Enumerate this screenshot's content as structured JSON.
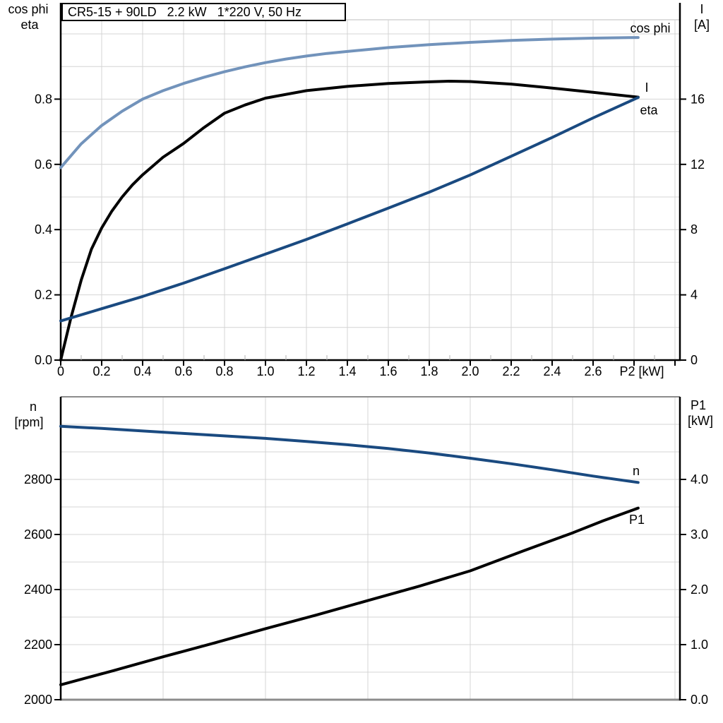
{
  "title": "CR5-15 + 90LD   2.2 kW   1*220 V, 50 Hz",
  "colors": {
    "light_blue": "#7293BB",
    "dark_blue": "#1A4A80",
    "black": "#000000",
    "grid": "#D4D4D4",
    "frame_gray": "#8C8C8C",
    "minor_tick": "#B0B0B0"
  },
  "chart_data": [
    {
      "type": "line",
      "panel": "top",
      "title": "CR5-15 + 90LD 2.2 kW 1*220 V, 50 Hz",
      "x_axis": {
        "label": "P2 [kW]",
        "range": [
          0,
          3.02
        ],
        "grid_step": 0.2,
        "tick_step": 0.2,
        "tick_labels": [
          "0",
          "0.2",
          "0.4",
          "0.6",
          "0.8",
          "1.0",
          "1.2",
          "1.4",
          "1.6",
          "1.8",
          "2.0",
          "2.2",
          "2.4",
          "2.6"
        ]
      },
      "left_axis": {
        "label_lines": [
          "cos phi",
          "eta"
        ],
        "range": [
          0,
          1.04
        ],
        "grid_step": 0.1,
        "ticks": [
          "0.0",
          "0.2",
          "0.4",
          "0.6",
          "0.8"
        ]
      },
      "right_axis": {
        "label_lines": [
          "I",
          "[A]"
        ],
        "range": [
          0,
          20.9
        ],
        "ticks": [
          "0",
          "4",
          "8",
          "12",
          "16"
        ]
      },
      "series": [
        {
          "name": "cos phi",
          "axis": "left",
          "color": "light_blue",
          "points": [
            [
              0,
              0.59
            ],
            [
              0.1,
              0.663
            ],
            [
              0.2,
              0.719
            ],
            [
              0.3,
              0.763
            ],
            [
              0.4,
              0.8
            ],
            [
              0.5,
              0.826
            ],
            [
              0.6,
              0.848
            ],
            [
              0.7,
              0.867
            ],
            [
              0.8,
              0.884
            ],
            [
              0.9,
              0.899
            ],
            [
              1.0,
              0.912
            ],
            [
              1.1,
              0.923
            ],
            [
              1.2,
              0.932
            ],
            [
              1.3,
              0.94
            ],
            [
              1.4,
              0.946
            ],
            [
              1.6,
              0.958
            ],
            [
              1.8,
              0.967
            ],
            [
              2.0,
              0.974
            ],
            [
              2.2,
              0.98
            ],
            [
              2.4,
              0.984
            ],
            [
              2.6,
              0.987
            ],
            [
              2.82,
              0.989
            ]
          ]
        },
        {
          "name": "eta",
          "axis": "left",
          "color": "black",
          "points": [
            [
              0,
              0
            ],
            [
              0.05,
              0.13
            ],
            [
              0.1,
              0.245
            ],
            [
              0.15,
              0.34
            ],
            [
              0.2,
              0.405
            ],
            [
              0.25,
              0.457
            ],
            [
              0.3,
              0.5
            ],
            [
              0.35,
              0.537
            ],
            [
              0.4,
              0.568
            ],
            [
              0.5,
              0.622
            ],
            [
              0.6,
              0.664
            ],
            [
              0.7,
              0.713
            ],
            [
              0.8,
              0.757
            ],
            [
              0.9,
              0.782
            ],
            [
              1.0,
              0.803
            ],
            [
              1.2,
              0.826
            ],
            [
              1.4,
              0.839
            ],
            [
              1.6,
              0.848
            ],
            [
              1.8,
              0.853
            ],
            [
              1.9,
              0.855
            ],
            [
              2.0,
              0.854
            ],
            [
              2.2,
              0.846
            ],
            [
              2.4,
              0.834
            ],
            [
              2.6,
              0.821
            ],
            [
              2.82,
              0.806
            ]
          ]
        },
        {
          "name": "I",
          "axis": "right",
          "color": "dark_blue",
          "points": [
            [
              0,
              2.4
            ],
            [
              0.2,
              3.15
            ],
            [
              0.4,
              3.9
            ],
            [
              0.6,
              4.72
            ],
            [
              0.8,
              5.6
            ],
            [
              1.0,
              6.5
            ],
            [
              1.2,
              7.4
            ],
            [
              1.4,
              8.35
            ],
            [
              1.6,
              9.32
            ],
            [
              1.8,
              10.3
            ],
            [
              2.0,
              11.35
            ],
            [
              2.2,
              12.5
            ],
            [
              2.4,
              13.65
            ],
            [
              2.6,
              14.85
            ],
            [
              2.82,
              16.1
            ]
          ]
        }
      ]
    },
    {
      "type": "line",
      "panel": "bottom",
      "x_axis": {
        "label": "",
        "range": [
          0,
          3.02
        ],
        "grid_step": 0.5,
        "tick_labels": []
      },
      "left_axis": {
        "label_lines": [
          "n",
          "[rpm]"
        ],
        "range": [
          2000,
          3100
        ],
        "grid_step": 100,
        "ticks": [
          "2000",
          "2200",
          "2400",
          "2600",
          "2800"
        ]
      },
      "right_axis": {
        "label_lines": [
          "P1",
          "[kW]"
        ],
        "range": [
          0,
          5.5
        ],
        "ticks": [
          "0.0",
          "1.0",
          "2.0",
          "3.0",
          "4.0"
        ]
      },
      "series": [
        {
          "name": "n",
          "axis": "left",
          "color": "dark_blue",
          "points": [
            [
              0,
              2993
            ],
            [
              0.2,
              2985
            ],
            [
              0.4,
              2976
            ],
            [
              0.6,
              2967
            ],
            [
              0.8,
              2958
            ],
            [
              1.0,
              2949
            ],
            [
              1.2,
              2938
            ],
            [
              1.4,
              2926
            ],
            [
              1.6,
              2912
            ],
            [
              1.8,
              2896
            ],
            [
              2.0,
              2877
            ],
            [
              2.2,
              2857
            ],
            [
              2.4,
              2835
            ],
            [
              2.6,
              2812
            ],
            [
              2.82,
              2789
            ]
          ]
        },
        {
          "name": "P1",
          "axis": "right",
          "color": "black",
          "points": [
            [
              0,
              0.27
            ],
            [
              0.25,
              0.52
            ],
            [
              0.5,
              0.78
            ],
            [
              0.75,
              1.03
            ],
            [
              1.0,
              1.29
            ],
            [
              1.25,
              1.54
            ],
            [
              1.5,
              1.8
            ],
            [
              1.75,
              2.06
            ],
            [
              2.0,
              2.34
            ],
            [
              2.25,
              2.69
            ],
            [
              2.5,
              3.03
            ],
            [
              2.65,
              3.25
            ],
            [
              2.82,
              3.48
            ]
          ]
        }
      ]
    }
  ]
}
